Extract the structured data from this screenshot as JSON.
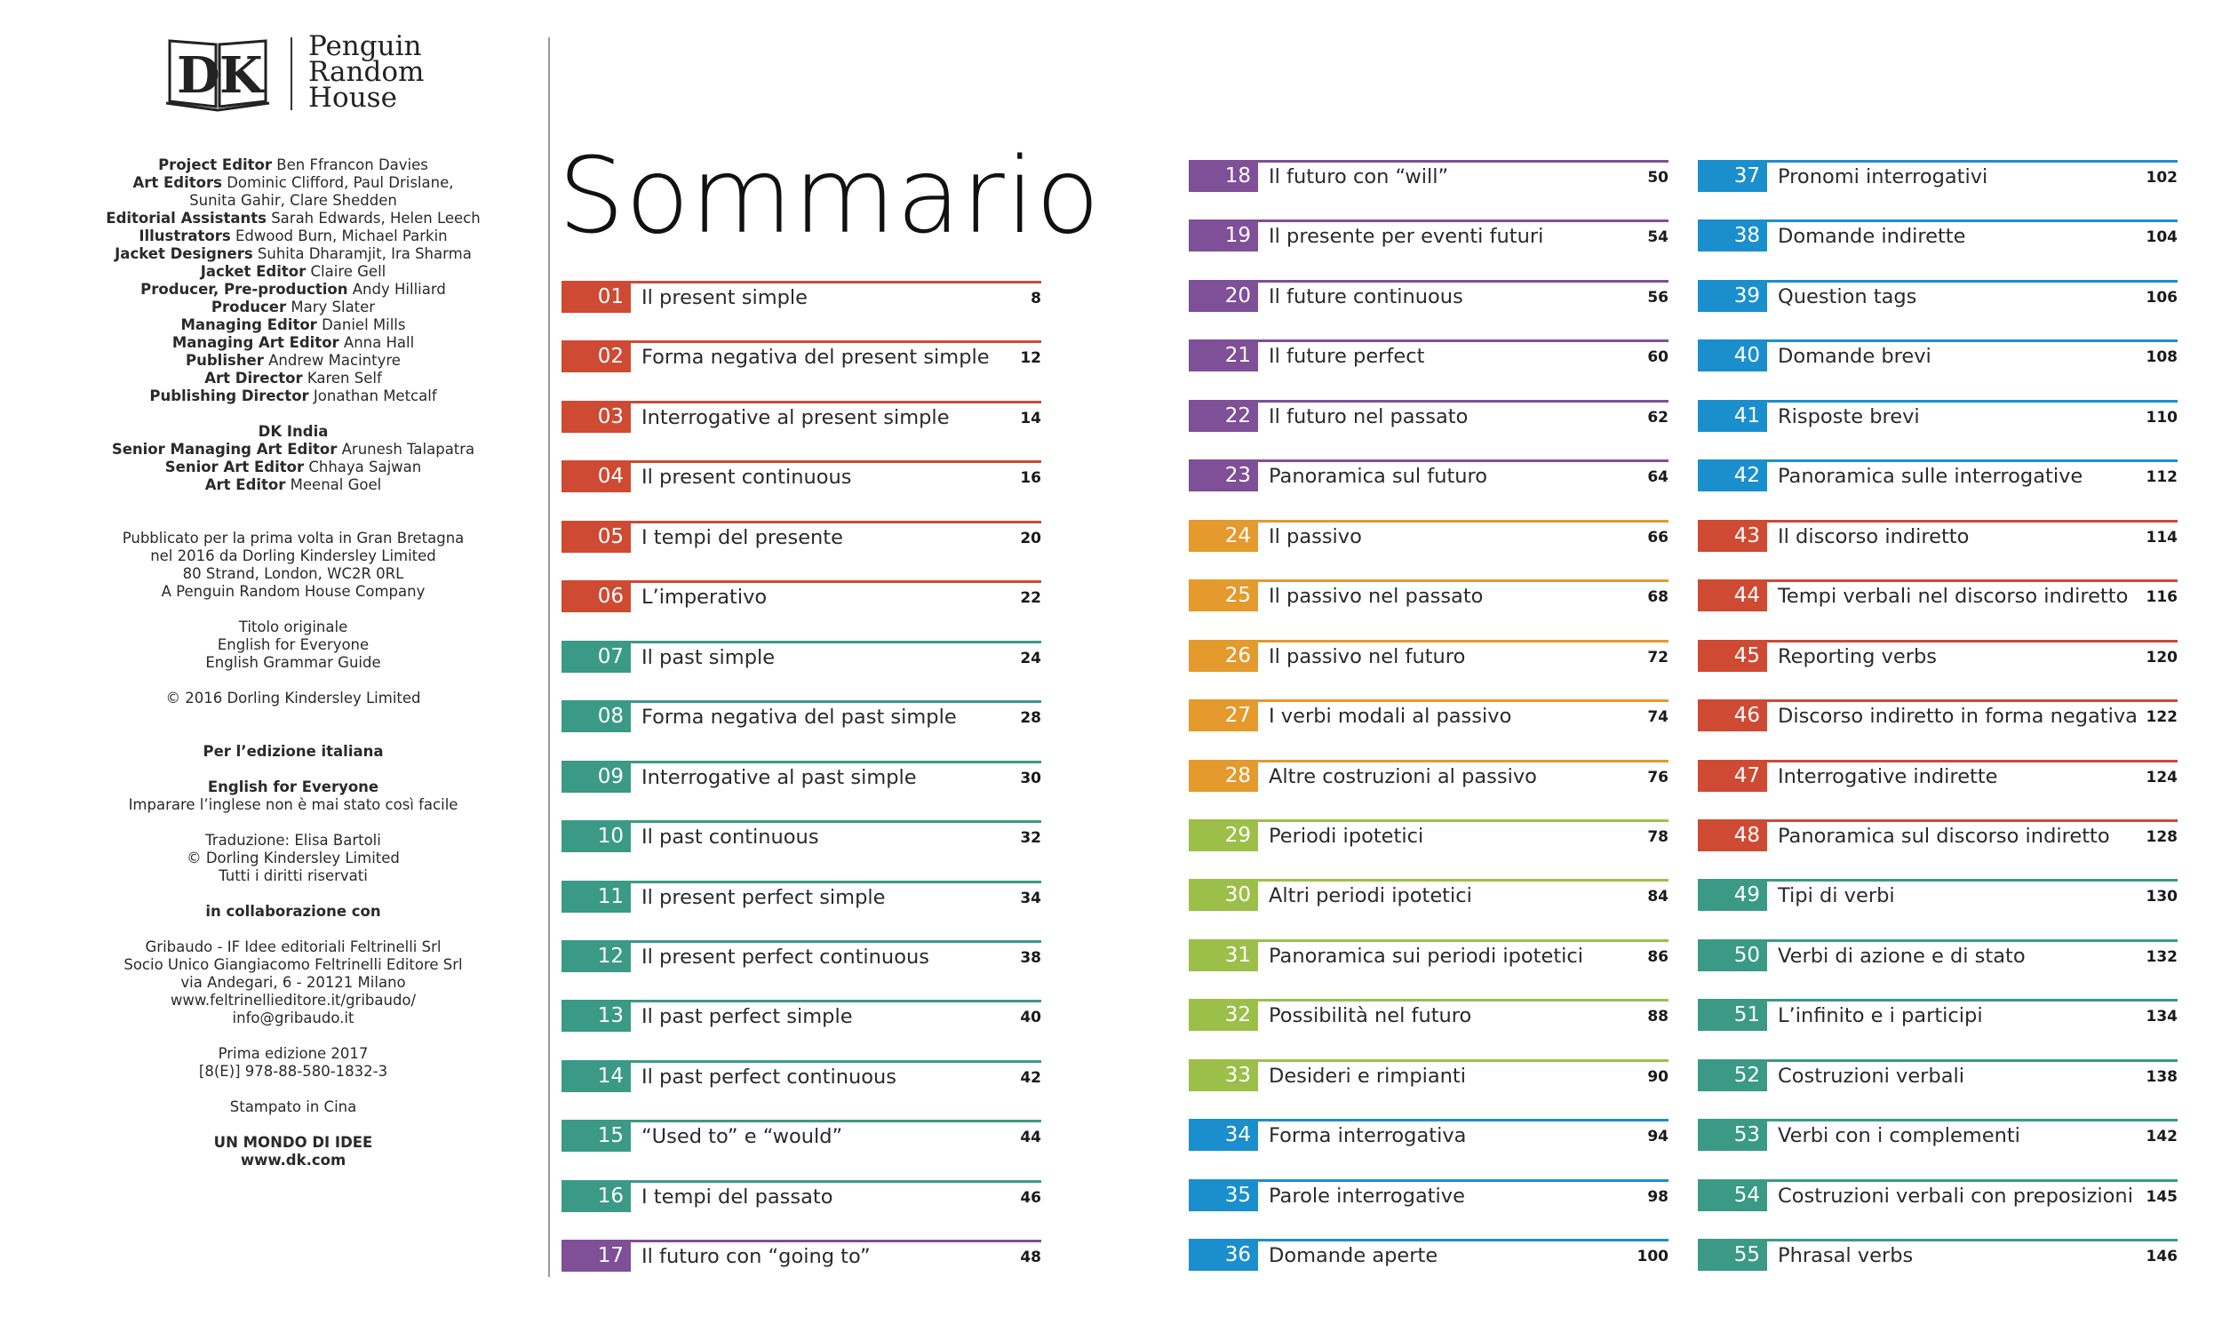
{
  "logo": {
    "publisher_lines": [
      "Penguin",
      "Random",
      "House"
    ]
  },
  "credits": [
    {
      "role": "Project Editor",
      "name": "Ben Ffrancon Davies"
    },
    {
      "role": "Art Editors",
      "name": "Dominic Clifford, Paul Drislane,"
    },
    {
      "role": "",
      "name": "Sunita Gahir, Clare Shedden"
    },
    {
      "role": "Editorial Assistants",
      "name": "Sarah Edwards, Helen Leech"
    },
    {
      "role": "Illustrators",
      "name": "Edwood Burn, Michael Parkin"
    },
    {
      "role": "Jacket Designers",
      "name": "Suhita Dharamjit, Ira Sharma"
    },
    {
      "role": "Jacket Editor",
      "name": "Claire Gell"
    },
    {
      "role": "Producer, Pre-production",
      "name": "Andy Hilliard"
    },
    {
      "role": "Producer",
      "name": "Mary Slater"
    },
    {
      "role": "Managing Editor",
      "name": "Daniel Mills"
    },
    {
      "role": "Managing Art Editor",
      "name": "Anna Hall"
    },
    {
      "role": "Publisher",
      "name": "Andrew Macintyre"
    },
    {
      "role": "Art Director",
      "name": "Karen Self"
    },
    {
      "role": "Publishing Director",
      "name": "Jonathan Metcalf"
    }
  ],
  "credits_india_heading": "DK India",
  "credits_india": [
    {
      "role": "Senior Managing Art Editor",
      "name": "Arunesh Talapatra"
    },
    {
      "role": "Senior Art Editor",
      "name": "Chhaya Sajwan"
    },
    {
      "role": "Art Editor",
      "name": "Meenal Goel"
    }
  ],
  "publication": [
    "Pubblicato per la prima volta in Gran Bretagna",
    "nel 2016 da Dorling Kindersley Limited",
    "80 Strand, London, WC2R 0RL",
    "A Penguin Random House Company"
  ],
  "original_title": [
    "Titolo originale",
    "English for Everyone",
    "English Grammar Guide"
  ],
  "copyright": "© 2016 Dorling Kindersley Limited",
  "italian_edition_heading": "Per l’edizione italiana",
  "italian_title": "English for Everyone",
  "italian_subtitle": "Imparare l’inglese non è mai stato così facile",
  "translation": [
    "Traduzione: Elisa Bartoli",
    "© Dorling Kindersley Limited",
    "Tutti i diritti riservati"
  ],
  "collab_heading": "in collaborazione con",
  "collab": [
    "Gribaudo - IF Idee editoriali Feltrinelli Srl",
    "Socio Unico Giangiacomo Feltrinelli Editore Srl",
    "via Andegari, 6 - 20121 Milano",
    "www.feltrinellieditore.it/gribaudo/",
    "info@gribaudo.it"
  ],
  "edition": [
    "Prima edizione 2017",
    "[8(E)] 978-88-580-1832-3"
  ],
  "printed": "Stampato in Cina",
  "footer": [
    "UN MONDO DI IDEE",
    "www.dk.com"
  ],
  "title": "Sommario",
  "colors": {
    "red": "#cf4a33",
    "teal": "#3a9a85",
    "purple": "#7f4f97",
    "orange": "#e49a2c",
    "green": "#9bbf49",
    "blue": "#1b8fcd"
  },
  "toc": [
    {
      "num": "01",
      "title": "Il present simple",
      "page": "8",
      "color": "red"
    },
    {
      "num": "02",
      "title": "Forma negativa del present simple",
      "page": "12",
      "color": "red"
    },
    {
      "num": "03",
      "title": "Interrogative al present simple",
      "page": "14",
      "color": "red"
    },
    {
      "num": "04",
      "title": "Il present continuous",
      "page": "16",
      "color": "red"
    },
    {
      "num": "05",
      "title": "I tempi del presente",
      "page": "20",
      "color": "red"
    },
    {
      "num": "06",
      "title": "L’imperativo",
      "page": "22",
      "color": "red"
    },
    {
      "num": "07",
      "title": "Il past simple",
      "page": "24",
      "color": "teal"
    },
    {
      "num": "08",
      "title": "Forma negativa del past simple",
      "page": "28",
      "color": "teal"
    },
    {
      "num": "09",
      "title": "Interrogative al past simple",
      "page": "30",
      "color": "teal"
    },
    {
      "num": "10",
      "title": "Il past continuous",
      "page": "32",
      "color": "teal"
    },
    {
      "num": "11",
      "title": "Il present perfect simple",
      "page": "34",
      "color": "teal"
    },
    {
      "num": "12",
      "title": "Il present perfect continuous",
      "page": "38",
      "color": "teal"
    },
    {
      "num": "13",
      "title": "Il past perfect simple",
      "page": "40",
      "color": "teal"
    },
    {
      "num": "14",
      "title": "Il past perfect continuous",
      "page": "42",
      "color": "teal"
    },
    {
      "num": "15",
      "title": "“Used to” e “would”",
      "page": "44",
      "color": "teal"
    },
    {
      "num": "16",
      "title": "I tempi del passato",
      "page": "46",
      "color": "teal"
    },
    {
      "num": "17",
      "title": "Il futuro con “going to”",
      "page": "48",
      "color": "purple"
    },
    {
      "num": "18",
      "title": "Il futuro con “will”",
      "page": "50",
      "color": "purple"
    },
    {
      "num": "19",
      "title": "Il presente per eventi futuri",
      "page": "54",
      "color": "purple"
    },
    {
      "num": "20",
      "title": "Il future continuous",
      "page": "56",
      "color": "purple"
    },
    {
      "num": "21",
      "title": "Il future perfect",
      "page": "60",
      "color": "purple"
    },
    {
      "num": "22",
      "title": "Il futuro nel passato",
      "page": "62",
      "color": "purple"
    },
    {
      "num": "23",
      "title": "Panoramica sul futuro",
      "page": "64",
      "color": "purple"
    },
    {
      "num": "24",
      "title": "Il passivo",
      "page": "66",
      "color": "orange"
    },
    {
      "num": "25",
      "title": "Il passivo nel passato",
      "page": "68",
      "color": "orange"
    },
    {
      "num": "26",
      "title": "Il passivo nel futuro",
      "page": "72",
      "color": "orange"
    },
    {
      "num": "27",
      "title": "I verbi modali al passivo",
      "page": "74",
      "color": "orange"
    },
    {
      "num": "28",
      "title": "Altre costruzioni al passivo",
      "page": "76",
      "color": "orange"
    },
    {
      "num": "29",
      "title": "Periodi ipotetici",
      "page": "78",
      "color": "green"
    },
    {
      "num": "30",
      "title": "Altri periodi ipotetici",
      "page": "84",
      "color": "green"
    },
    {
      "num": "31",
      "title": "Panoramica sui periodi ipotetici",
      "page": "86",
      "color": "green"
    },
    {
      "num": "32",
      "title": "Possibilità nel futuro",
      "page": "88",
      "color": "green"
    },
    {
      "num": "33",
      "title": "Desideri e rimpianti",
      "page": "90",
      "color": "green"
    },
    {
      "num": "34",
      "title": "Forma interrogativa",
      "page": "94",
      "color": "blue"
    },
    {
      "num": "35",
      "title": "Parole interrogative",
      "page": "98",
      "color": "blue"
    },
    {
      "num": "36",
      "title": "Domande aperte",
      "page": "100",
      "color": "blue"
    },
    {
      "num": "37",
      "title": "Pronomi interrogativi",
      "page": "102",
      "color": "blue"
    },
    {
      "num": "38",
      "title": "Domande indirette",
      "page": "104",
      "color": "blue"
    },
    {
      "num": "39",
      "title": "Question tags",
      "page": "106",
      "color": "blue"
    },
    {
      "num": "40",
      "title": "Domande brevi",
      "page": "108",
      "color": "blue"
    },
    {
      "num": "41",
      "title": "Risposte brevi",
      "page": "110",
      "color": "blue"
    },
    {
      "num": "42",
      "title": "Panoramica sulle interrogative",
      "page": "112",
      "color": "blue"
    },
    {
      "num": "43",
      "title": "Il discorso indiretto",
      "page": "114",
      "color": "red"
    },
    {
      "num": "44",
      "title": "Tempi verbali nel discorso indiretto",
      "page": "116",
      "color": "red"
    },
    {
      "num": "45",
      "title": "Reporting verbs",
      "page": "120",
      "color": "red"
    },
    {
      "num": "46",
      "title": "Discorso indiretto in forma negativa",
      "page": "122",
      "color": "red"
    },
    {
      "num": "47",
      "title": "Interrogative indirette",
      "page": "124",
      "color": "red"
    },
    {
      "num": "48",
      "title": "Panoramica sul discorso indiretto",
      "page": "128",
      "color": "red"
    },
    {
      "num": "49",
      "title": "Tipi di verbi",
      "page": "130",
      "color": "teal"
    },
    {
      "num": "50",
      "title": "Verbi di azione e di stato",
      "page": "132",
      "color": "teal"
    },
    {
      "num": "51",
      "title": "L’infinito e i participi",
      "page": "134",
      "color": "teal"
    },
    {
      "num": "52",
      "title": "Costruzioni verbali",
      "page": "138",
      "color": "teal"
    },
    {
      "num": "53",
      "title": "Verbi con i complementi",
      "page": "142",
      "color": "teal"
    },
    {
      "num": "54",
      "title": "Costruzioni verbali con preposizioni",
      "page": "145",
      "color": "teal"
    },
    {
      "num": "55",
      "title": "Phrasal verbs",
      "page": "146",
      "color": "teal"
    }
  ]
}
